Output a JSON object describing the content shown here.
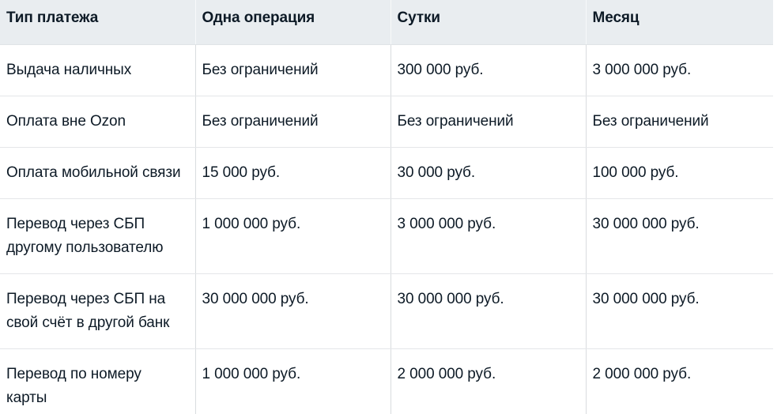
{
  "table": {
    "columns": [
      {
        "label": "Тип платежа"
      },
      {
        "label": "Одна операция"
      },
      {
        "label": "Сутки"
      },
      {
        "label": "Месяц"
      }
    ],
    "rows": [
      {
        "type": "Выдача наличных",
        "per_operation": "Без ограничений",
        "per_day": "300 000 руб.",
        "per_month": "3 000 000 руб."
      },
      {
        "type": "Оплата вне Ozon",
        "per_operation": "Без ограничений",
        "per_day": "Без ограничений",
        "per_month": "Без ограничений"
      },
      {
        "type": "Оплата мобильной связи",
        "per_operation": "15 000 руб.",
        "per_day": "30 000 руб.",
        "per_month": "100 000 руб."
      },
      {
        "type": "Перевод через СБП\nдругому пользователю",
        "per_operation": "1 000 000 руб.",
        "per_day": "3 000 000 руб.",
        "per_month": "30 000 000 руб."
      },
      {
        "type": "Перевод через СБП на\nсвой счёт в другой банк",
        "per_operation": "30 000 000 руб.",
        "per_day": "30 000 000 руб.",
        "per_month": "30 000 000 руб."
      },
      {
        "type": "Перевод по номеру\nкарты",
        "per_operation": "1 000 000 руб.",
        "per_day": "2 000 000 руб.",
        "per_month": "2 000 000 руб."
      }
    ]
  },
  "colors": {
    "header_background": "#e9edf0",
    "row_border": "#e4e6e9",
    "column_border": "#d9dcdf",
    "header_column_border": "#f7f9fa",
    "text": "#0d1a26",
    "page_background": "#ffffff"
  }
}
